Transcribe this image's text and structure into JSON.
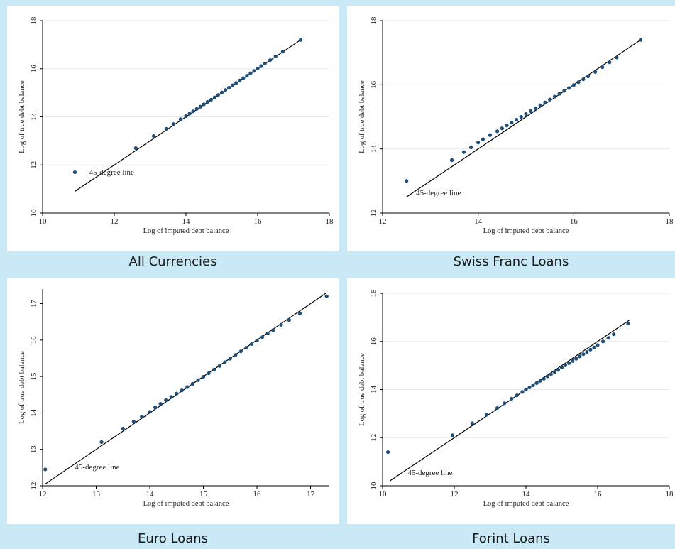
{
  "colors": {
    "page_bg": "#c9e9f7",
    "panel_bg": "#ffffff",
    "point": "#1f4e79",
    "line": "#000000",
    "grid": "#e8e8e8"
  },
  "chart_data": [
    {
      "type": "scatter",
      "caption": "All Currencies",
      "xlabel": "Log of imputed debt balance",
      "ylabel": "Log of true debt balance",
      "xlim": [
        10,
        18
      ],
      "ylim": [
        10,
        18
      ],
      "xticks": [
        "10",
        "12",
        "14",
        "16",
        "18"
      ],
      "yticks": [
        "10",
        "12",
        "14",
        "16",
        "18"
      ],
      "grid": true,
      "reference_line": {
        "from": [
          10.9,
          10.9
        ],
        "to": [
          17.2,
          17.2
        ],
        "label": "45-degree line",
        "label_at": [
          11.3,
          11.6
        ]
      },
      "points": [
        [
          10.9,
          11.7
        ],
        [
          12.6,
          12.7
        ],
        [
          13.1,
          13.2
        ],
        [
          13.45,
          13.5
        ],
        [
          13.65,
          13.7
        ],
        [
          13.85,
          13.9
        ],
        [
          14.0,
          14.03
        ],
        [
          14.1,
          14.13
        ],
        [
          14.2,
          14.23
        ],
        [
          14.3,
          14.33
        ],
        [
          14.4,
          14.42
        ],
        [
          14.5,
          14.52
        ],
        [
          14.6,
          14.62
        ],
        [
          14.7,
          14.71
        ],
        [
          14.8,
          14.81
        ],
        [
          14.9,
          14.91
        ],
        [
          15.0,
          15.01
        ],
        [
          15.1,
          15.11
        ],
        [
          15.2,
          15.21
        ],
        [
          15.3,
          15.31
        ],
        [
          15.4,
          15.41
        ],
        [
          15.5,
          15.51
        ],
        [
          15.6,
          15.61
        ],
        [
          15.7,
          15.71
        ],
        [
          15.8,
          15.81
        ],
        [
          15.9,
          15.91
        ],
        [
          16.0,
          16.01
        ],
        [
          16.1,
          16.11
        ],
        [
          16.2,
          16.21
        ],
        [
          16.35,
          16.36
        ],
        [
          16.5,
          16.51
        ],
        [
          16.7,
          16.71
        ],
        [
          17.2,
          17.2
        ]
      ]
    },
    {
      "type": "scatter",
      "caption": "Swiss Franc Loans",
      "xlabel": "Log of imputed debt balance",
      "ylabel": "Log of true debt balance",
      "xlim": [
        12,
        18
      ],
      "ylim": [
        12,
        18
      ],
      "xticks": [
        "12",
        "14",
        "16",
        "18"
      ],
      "yticks": [
        "12",
        "14",
        "16",
        "18"
      ],
      "grid": true,
      "reference_line": {
        "from": [
          12.5,
          12.5
        ],
        "to": [
          17.4,
          17.4
        ],
        "label": "45-degree line",
        "label_at": [
          12.7,
          12.55
        ]
      },
      "points": [
        [
          12.5,
          13.0
        ],
        [
          13.45,
          13.65
        ],
        [
          13.7,
          13.9
        ],
        [
          13.85,
          14.05
        ],
        [
          14.0,
          14.2
        ],
        [
          14.1,
          14.3
        ],
        [
          14.25,
          14.43
        ],
        [
          14.4,
          14.55
        ],
        [
          14.5,
          14.64
        ],
        [
          14.6,
          14.73
        ],
        [
          14.7,
          14.82
        ],
        [
          14.8,
          14.91
        ],
        [
          14.9,
          15.0
        ],
        [
          15.0,
          15.09
        ],
        [
          15.1,
          15.18
        ],
        [
          15.2,
          15.27
        ],
        [
          15.3,
          15.36
        ],
        [
          15.4,
          15.45
        ],
        [
          15.5,
          15.54
        ],
        [
          15.6,
          15.63
        ],
        [
          15.7,
          15.72
        ],
        [
          15.8,
          15.81
        ],
        [
          15.9,
          15.9
        ],
        [
          16.0,
          15.99
        ],
        [
          16.1,
          16.08
        ],
        [
          16.2,
          16.17
        ],
        [
          16.3,
          16.26
        ],
        [
          16.45,
          16.4
        ],
        [
          16.6,
          16.55
        ],
        [
          16.75,
          16.7
        ],
        [
          16.9,
          16.85
        ],
        [
          17.4,
          17.4
        ]
      ]
    },
    {
      "type": "scatter",
      "caption": "Euro Loans",
      "xlabel": "Log of imputed debt balance",
      "ylabel": "Log of true debt balance",
      "xlim": [
        12,
        17.35
      ],
      "ylim": [
        12,
        17.4
      ],
      "xticks": [
        "12",
        "13",
        "14",
        "15",
        "16",
        "17"
      ],
      "yticks": [
        "12",
        "13",
        "14",
        "15",
        "16",
        "17"
      ],
      "grid": false,
      "reference_line": {
        "from": [
          12.05,
          12.05
        ],
        "to": [
          17.3,
          17.3
        ],
        "label": "45-degree line",
        "label_at": [
          12.6,
          12.45
        ]
      },
      "points": [
        [
          12.05,
          12.45
        ],
        [
          13.1,
          13.2
        ],
        [
          13.5,
          13.57
        ],
        [
          13.7,
          13.76
        ],
        [
          13.85,
          13.9
        ],
        [
          14.0,
          14.03
        ],
        [
          14.1,
          14.15
        ],
        [
          14.2,
          14.25
        ],
        [
          14.3,
          14.35
        ],
        [
          14.4,
          14.44
        ],
        [
          14.5,
          14.53
        ],
        [
          14.6,
          14.62
        ],
        [
          14.7,
          14.71
        ],
        [
          14.8,
          14.8
        ],
        [
          14.9,
          14.9
        ],
        [
          15.0,
          14.99
        ],
        [
          15.1,
          15.09
        ],
        [
          15.2,
          15.19
        ],
        [
          15.3,
          15.29
        ],
        [
          15.4,
          15.39
        ],
        [
          15.5,
          15.49
        ],
        [
          15.6,
          15.59
        ],
        [
          15.7,
          15.69
        ],
        [
          15.8,
          15.79
        ],
        [
          15.9,
          15.89
        ],
        [
          16.0,
          15.99
        ],
        [
          16.1,
          16.08
        ],
        [
          16.2,
          16.18
        ],
        [
          16.3,
          16.27
        ],
        [
          16.45,
          16.42
        ],
        [
          16.6,
          16.55
        ],
        [
          16.8,
          16.73
        ],
        [
          17.3,
          17.2
        ]
      ]
    },
    {
      "type": "scatter",
      "caption": "Forint Loans",
      "xlabel": "Log of imputed debt balance",
      "ylabel": "Log of true debt balance",
      "xlim": [
        10,
        18
      ],
      "ylim": [
        10,
        18
      ],
      "xticks": [
        "10",
        "12",
        "14",
        "16",
        "18"
      ],
      "yticks": [
        "10",
        "12",
        "14",
        "16",
        "18"
      ],
      "grid": true,
      "reference_line": {
        "from": [
          10.2,
          10.2
        ],
        "to": [
          16.9,
          16.9
        ],
        "label": "45-degree line",
        "label_at": [
          10.7,
          10.45
        ]
      },
      "points": [
        [
          10.15,
          11.4
        ],
        [
          11.95,
          12.1
        ],
        [
          12.5,
          12.6
        ],
        [
          12.9,
          12.95
        ],
        [
          13.2,
          13.23
        ],
        [
          13.4,
          13.43
        ],
        [
          13.6,
          13.62
        ],
        [
          13.75,
          13.76
        ],
        [
          13.9,
          13.9
        ],
        [
          14.0,
          14.0
        ],
        [
          14.1,
          14.09
        ],
        [
          14.2,
          14.18
        ],
        [
          14.3,
          14.27
        ],
        [
          14.4,
          14.36
        ],
        [
          14.5,
          14.45
        ],
        [
          14.6,
          14.55
        ],
        [
          14.7,
          14.64
        ],
        [
          14.8,
          14.73
        ],
        [
          14.9,
          14.82
        ],
        [
          15.0,
          14.92
        ],
        [
          15.1,
          15.01
        ],
        [
          15.2,
          15.1
        ],
        [
          15.3,
          15.19
        ],
        [
          15.4,
          15.28
        ],
        [
          15.5,
          15.38
        ],
        [
          15.6,
          15.47
        ],
        [
          15.7,
          15.56
        ],
        [
          15.8,
          15.66
        ],
        [
          15.9,
          15.75
        ],
        [
          16.0,
          15.85
        ],
        [
          16.15,
          16.0
        ],
        [
          16.3,
          16.15
        ],
        [
          16.45,
          16.3
        ],
        [
          16.85,
          16.75
        ]
      ]
    }
  ]
}
